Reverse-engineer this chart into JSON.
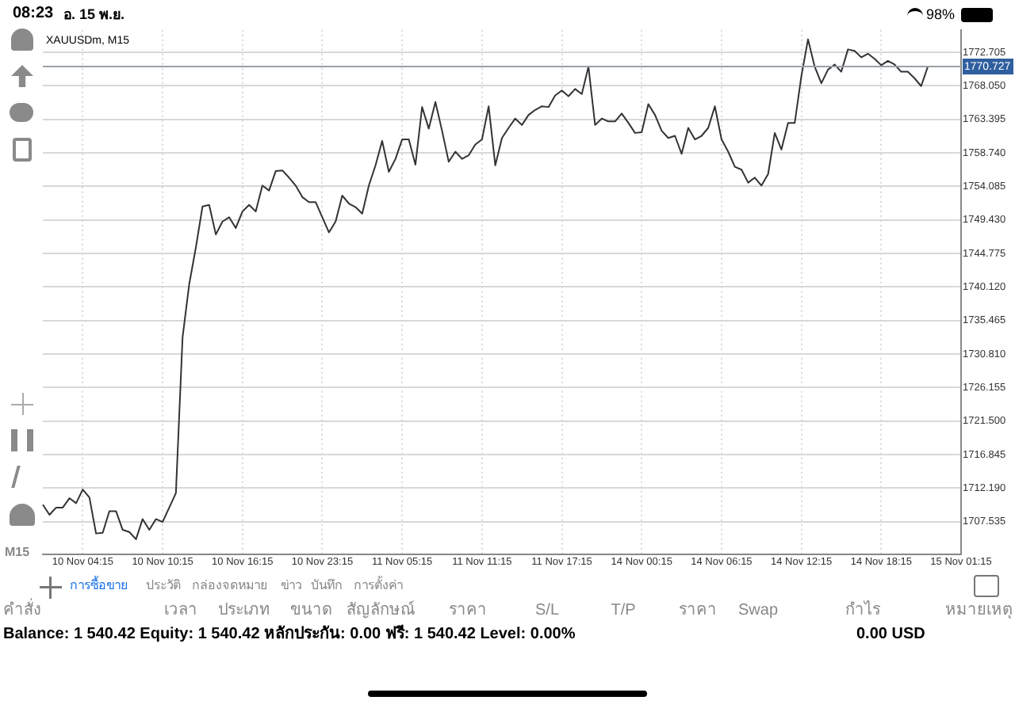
{
  "chart_data": {
    "type": "line",
    "title": "XAUUSDm, M15",
    "categories": [
      null,
      null,
      null,
      null,
      null,
      null,
      "10 Nov 04:15",
      null,
      null,
      null,
      null,
      null,
      null,
      null,
      null,
      null,
      null,
      null,
      "10 Nov 10:15",
      null,
      null,
      null,
      null,
      null,
      null,
      null,
      null,
      null,
      null,
      null,
      "10 Nov 16:15",
      null,
      null,
      null,
      null,
      null,
      null,
      null,
      null,
      null,
      null,
      null,
      "10 Nov 23:15",
      null,
      null,
      null,
      null,
      null,
      null,
      null,
      null,
      null,
      null,
      null,
      "11 Nov 05:15",
      null,
      null,
      null,
      null,
      null,
      null,
      null,
      null,
      null,
      null,
      null,
      "11 Nov 11:15",
      null,
      null,
      null,
      null,
      null,
      null,
      null,
      null,
      null,
      null,
      null,
      "11 Nov 17:15",
      null,
      null,
      null,
      null,
      null,
      null,
      null,
      null,
      null,
      null,
      null,
      "14 Nov 00:15",
      null,
      null,
      null,
      null,
      null,
      null,
      null,
      null,
      null,
      null,
      null,
      "14 Nov 06:15",
      null,
      null,
      null,
      null,
      null,
      null,
      null,
      null,
      null,
      null,
      null,
      "14 Nov 12:15",
      null,
      null,
      null,
      null,
      null,
      null,
      null,
      null,
      null,
      null,
      null,
      "14 Nov 18:15",
      null,
      null,
      null,
      null,
      null,
      null,
      null,
      null,
      null,
      null,
      null,
      "15 Nov 01:15"
    ],
    "series": [
      {
        "color": "#333333",
        "values": [
          1709.9,
          1708.5,
          1709.5,
          1709.5,
          1710.8,
          1710.1,
          1712.0,
          1710.9,
          1705.9,
          1706.0,
          1709.0,
          1709.0,
          1706.4,
          1706.1,
          1705.1,
          1707.9,
          1706.4,
          1707.9,
          1707.5,
          1709.5,
          1711.5,
          1733.1,
          1740.5,
          1745.6,
          1751.3,
          1751.5,
          1747.4,
          1749.2,
          1749.8,
          1748.3,
          1750.6,
          1751.5,
          1750.6,
          1754.2,
          1753.5,
          1756.2,
          1756.3,
          1755.3,
          1754.2,
          1752.6,
          1751.9,
          1751.9,
          1749.8,
          1747.7,
          1749.2,
          1752.8,
          1751.7,
          1751.2,
          1750.3,
          1754.2,
          1757.0,
          1760.4,
          1756.1,
          1757.9,
          1760.6,
          1760.6,
          1757.1,
          1765.1,
          1762.1,
          1765.8,
          1761.8,
          1757.5,
          1758.9,
          1757.9,
          1758.4,
          1759.9,
          1760.6,
          1765.2,
          1757.0,
          1760.8,
          1762.2,
          1763.5,
          1762.6,
          1764.0,
          1764.7,
          1765.2,
          1765.1,
          1766.7,
          1767.4,
          1766.6,
          1767.6,
          1766.9,
          1770.7,
          1762.6,
          1763.5,
          1763.1,
          1763.1,
          1764.2,
          1762.9,
          1761.5,
          1761.6,
          1765.5,
          1764.0,
          1761.8,
          1760.8,
          1761.1,
          1758.6,
          1762.2,
          1760.6,
          1761.1,
          1762.2,
          1765.2,
          1760.6,
          1758.9,
          1756.8,
          1756.4,
          1754.6,
          1755.3,
          1754.2,
          1755.8,
          1761.5,
          1759.2,
          1762.9,
          1762.9,
          1769.4,
          1774.5,
          1770.7,
          1768.4,
          1770.3,
          1771.0,
          1770.0,
          1773.1,
          1772.9,
          1772.0,
          1772.5,
          1771.8,
          1770.9,
          1771.5,
          1771.0,
          1770.0,
          1770.0,
          1769.1,
          1768.0,
          1770.7,
          null,
          null,
          null,
          null,
          null
        ]
      }
    ],
    "ylim": [
      1703.0,
      1775.8
    ],
    "yticks": [
      1707.535,
      {
        "value": 1712.19,
        "label": "1712.190"
      },
      1716.845,
      {
        "value": 1721.5,
        "label": "1721.500"
      },
      1726.155,
      {
        "value": 1730.81,
        "label": "1730.810"
      },
      1735.465,
      {
        "value": 1740.12,
        "label": "1740.120"
      },
      1744.775,
      {
        "value": 1749.43,
        "label": "1749.430"
      },
      1754.085,
      {
        "value": 1758.74,
        "label": "1758.740"
      },
      1763.395,
      {
        "value": 1768.05,
        "label": "1768.050"
      },
      1772.705
    ],
    "ref_lines": [
      {
        "axis": "y",
        "value": 1770.727,
        "label": "1770.727",
        "color": "#9aa0a6"
      }
    ],
    "grid": true,
    "legend": false,
    "marker": "none",
    "line_style": "solid",
    "annotations": [
      "08:23",
      "อ. 15 พ.ย.",
      "98%",
      "M15",
      "การซื้อขาย",
      "ประวัติ",
      "กล่องจดหมาย",
      "ข่าว",
      "บันทึก",
      "การตั้งค่า",
      "คำสั่ง",
      "เวลา",
      "ประเภท",
      "ขนาด",
      "สัญลักษณ์",
      "ราคา",
      "S/L",
      "T/P",
      "ราคา",
      "Swap",
      "กำไร",
      "หมายเหตุ",
      "Balance: 1 540.42 Equity: 1 540.42 หลักประกัน: 0.00 ฟรี: 1 540.42 Level: 0.00%",
      "0.00  USD"
    ]
  }
}
